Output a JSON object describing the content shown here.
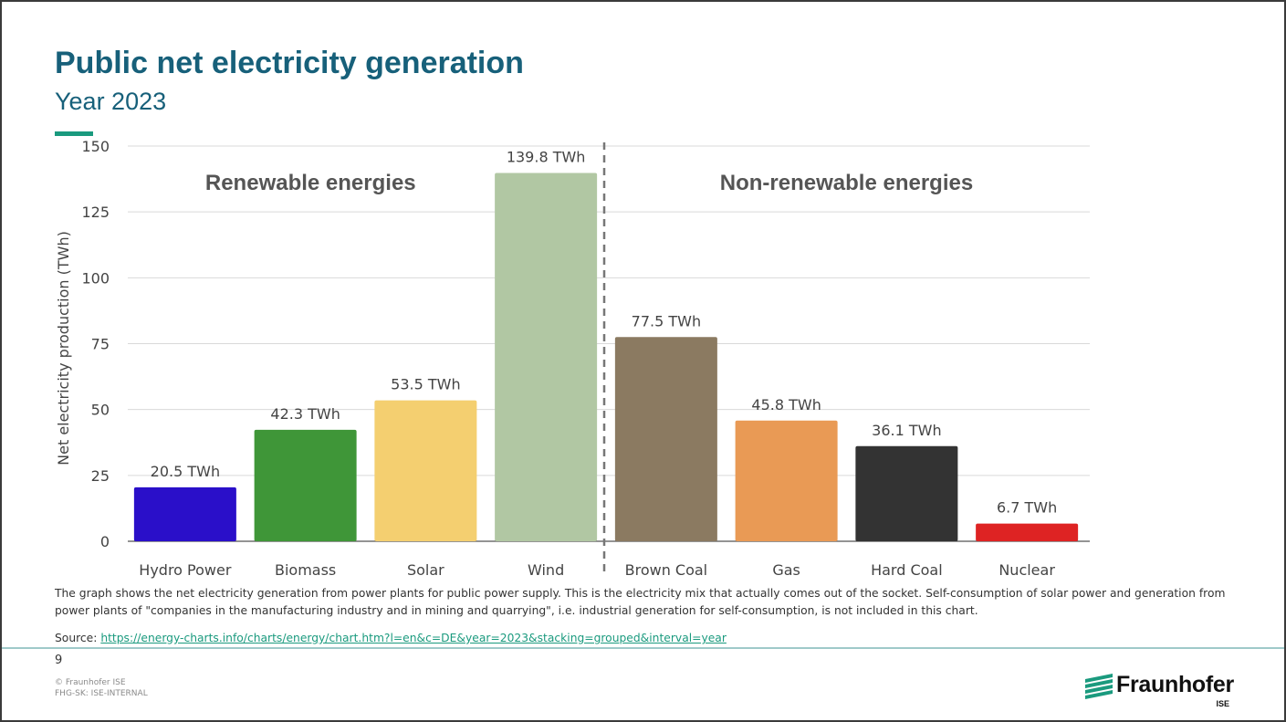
{
  "header": {
    "title": "Public net electricity generation",
    "subtitle": "Year 2023"
  },
  "chart_data": {
    "type": "bar",
    "categories": [
      "Hydro Power",
      "Biomass",
      "Solar",
      "Wind",
      "Brown Coal",
      "Gas",
      "Hard Coal",
      "Nuclear"
    ],
    "values": [
      20.5,
      42.3,
      53.5,
      139.8,
      77.5,
      45.8,
      36.1,
      6.7
    ],
    "data_labels": [
      "20.5 TWh",
      "42.3 TWh",
      "53.5 TWh",
      "139.8 TWh",
      "77.5 TWh",
      "45.8 TWh",
      "36.1 TWh",
      "6.7 TWh"
    ],
    "colors": [
      "#2a0fc9",
      "#3f9638",
      "#f4cf70",
      "#b1c7a3",
      "#8b7a61",
      "#e99a55",
      "#333333",
      "#de2323"
    ],
    "ylabel": "Net electricity production (TWh)",
    "xlabel": "",
    "ylim": [
      0,
      150
    ],
    "yticks": [
      0,
      25,
      50,
      75,
      100,
      125,
      150
    ],
    "grid": true,
    "groups": [
      {
        "label": "Renewable energies",
        "from": 0,
        "to": 3
      },
      {
        "label": "Non-renewable energies",
        "from": 4,
        "to": 7
      }
    ]
  },
  "caption": "The graph shows the net electricity generation from power plants for public power supply. This is the electricity mix that actually comes out of the socket. Self-consumption of solar power and generation from power plants of \"companies in the manufacturing industry and in mining and quarrying\", i.e. industrial generation for self-consumption, is not included in this chart.",
  "source": {
    "label": "Source:",
    "url": "https://energy-charts.info/charts/energy/chart.htm?l=en&c=DE&year=2023&stacking=grouped&interval=year"
  },
  "footer": {
    "page_number": "9",
    "copyright": "© Fraunhofer ISE",
    "classification": "FHG-SK: ISE-INTERNAL",
    "logo_text": "Fraunhofer",
    "logo_sub": "ISE"
  }
}
